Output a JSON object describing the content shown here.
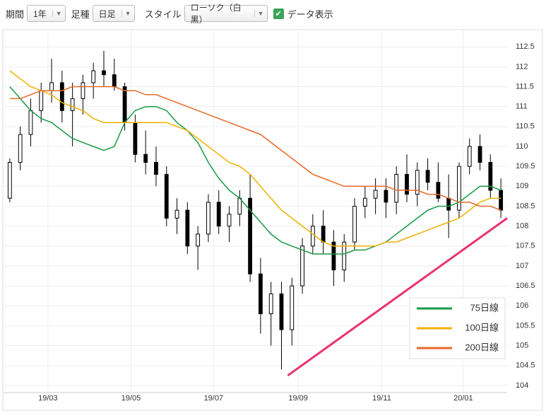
{
  "toolbar": {
    "period_label": "期間",
    "period": "1年",
    "bar_label": "足種",
    "bar": "日足",
    "style_label": "スタイル",
    "style": "ローソク（白黒）",
    "show_data": "データ表示"
  },
  "chart_data": {
    "type": "candlestick",
    "categories": [
      null,
      null,
      null,
      null,
      null,
      null,
      null,
      null,
      null,
      null,
      null,
      null,
      null,
      null,
      null,
      null,
      null,
      null,
      null,
      null,
      null,
      null,
      null,
      null,
      null,
      null,
      null,
      null,
      null,
      null,
      null,
      null,
      null,
      null,
      null,
      null,
      null,
      null,
      null,
      null,
      null,
      null,
      null,
      null,
      null,
      null,
      null,
      null
    ],
    "candles": {
      "open": [
        108.7,
        109.6,
        110.3,
        110.9,
        111.4,
        111.6,
        110.9,
        111.2,
        111.6,
        111.9,
        111.8,
        111.5,
        110.6,
        109.8,
        109.6,
        109.3,
        108.2,
        108.4,
        107.5,
        107.8,
        108.6,
        108.0,
        108.3,
        108.7,
        106.8,
        105.8,
        106.3,
        105.4,
        106.5,
        107.5,
        108.0,
        107.6,
        106.9,
        107.6,
        108.5,
        108.7,
        108.9,
        108.6,
        109.3,
        108.8,
        109.4,
        109.1,
        108.7,
        108.4,
        109.5,
        110.0,
        109.6,
        108.9
      ],
      "high": [
        109.7,
        110.5,
        111.2,
        111.6,
        112.2,
        111.9,
        111.6,
        111.8,
        112.1,
        112.4,
        112.2,
        111.6,
        110.8,
        110.4,
        110.0,
        109.5,
        108.7,
        108.6,
        108.0,
        108.8,
        108.9,
        108.5,
        108.9,
        109.3,
        107.2,
        106.6,
        106.6,
        106.7,
        107.7,
        108.3,
        108.4,
        107.9,
        107.8,
        108.7,
        109.0,
        109.2,
        109.2,
        109.5,
        109.8,
        109.6,
        109.7,
        109.6,
        109.3,
        109.6,
        110.2,
        110.3,
        109.8,
        109.2
      ],
      "low": [
        108.6,
        109.4,
        110.0,
        110.6,
        111.1,
        110.6,
        110.0,
        110.8,
        111.2,
        111.5,
        111.4,
        110.4,
        109.6,
        109.3,
        109.0,
        108.0,
        107.8,
        107.3,
        106.9,
        107.6,
        107.8,
        107.6,
        108.0,
        106.6,
        105.3,
        105.0,
        104.4,
        105.0,
        106.3,
        107.3,
        107.3,
        106.5,
        106.6,
        107.4,
        108.2,
        108.3,
        108.2,
        108.3,
        108.6,
        108.5,
        108.9,
        108.6,
        107.7,
        108.2,
        109.3,
        109.4,
        108.7,
        108.2
      ],
      "close": [
        109.6,
        110.3,
        110.9,
        111.4,
        111.6,
        110.9,
        111.2,
        111.6,
        111.9,
        111.8,
        111.5,
        110.6,
        109.8,
        109.6,
        109.3,
        108.2,
        108.4,
        107.5,
        107.8,
        108.6,
        108.0,
        108.3,
        108.7,
        106.8,
        105.8,
        106.3,
        105.4,
        106.5,
        107.5,
        108.0,
        107.6,
        106.9,
        107.6,
        108.5,
        108.7,
        108.9,
        108.6,
        109.3,
        108.8,
        109.4,
        109.1,
        108.7,
        108.4,
        109.5,
        110.0,
        109.6,
        108.9,
        108.4
      ]
    },
    "series": [
      {
        "name": "75日線",
        "color": "#1a9a48",
        "values": [
          111.5,
          111.2,
          110.9,
          110.7,
          110.6,
          110.4,
          110.2,
          110.1,
          110.0,
          109.9,
          110.0,
          110.6,
          110.9,
          111.0,
          111.0,
          110.9,
          110.6,
          110.4,
          110.1,
          109.6,
          109.2,
          108.9,
          108.7,
          108.4,
          108.1,
          107.8,
          107.6,
          107.5,
          107.4,
          107.3,
          107.3,
          107.3,
          107.3,
          107.4,
          107.4,
          107.5,
          107.6,
          107.8,
          108.0,
          108.2,
          108.4,
          108.5,
          108.5,
          108.6,
          108.8,
          109.0,
          109.0,
          108.9
        ]
      },
      {
        "name": "100日線",
        "color": "#f0b000",
        "values": [
          111.9,
          111.7,
          111.5,
          111.4,
          111.3,
          111.1,
          111.0,
          110.9,
          110.7,
          110.6,
          110.6,
          110.6,
          110.6,
          110.6,
          110.6,
          110.6,
          110.5,
          110.4,
          110.2,
          110.0,
          109.8,
          109.6,
          109.5,
          109.3,
          109.0,
          108.7,
          108.4,
          108.2,
          108.0,
          107.8,
          107.6,
          107.5,
          107.5,
          107.5,
          107.5,
          107.5,
          107.6,
          107.6,
          107.7,
          107.8,
          107.9,
          108.0,
          108.1,
          108.2,
          108.4,
          108.6,
          108.7,
          108.7
        ]
      },
      {
        "name": "200日線",
        "color": "#e8682a",
        "values": [
          111.2,
          111.2,
          111.3,
          111.4,
          111.4,
          111.4,
          111.5,
          111.5,
          111.5,
          111.5,
          111.5,
          111.4,
          111.4,
          111.3,
          111.3,
          111.2,
          111.1,
          111.0,
          110.9,
          110.8,
          110.7,
          110.6,
          110.5,
          110.4,
          110.3,
          110.1,
          109.9,
          109.7,
          109.5,
          109.3,
          109.2,
          109.1,
          109.0,
          109.0,
          109.0,
          109.0,
          109.0,
          108.9,
          108.9,
          108.9,
          108.8,
          108.8,
          108.7,
          108.6,
          108.6,
          108.5,
          108.5,
          108.4
        ]
      }
    ],
    "trendline": {
      "color": "#e8336d",
      "x": [
        26.6,
        47.6
      ],
      "values": [
        104.25,
        108.2
      ]
    },
    "xlim": [
      -0.6,
      47.6
    ],
    "xticks": [
      {
        "value": 3.65,
        "label": "19/03"
      },
      {
        "value": 11.6,
        "label": "19/05"
      },
      {
        "value": 19.5,
        "label": "19/07"
      },
      {
        "value": 27.6,
        "label": "19/09"
      },
      {
        "value": 35.6,
        "label": "19/11"
      },
      {
        "value": 43.4,
        "label": "20/01"
      }
    ],
    "ylim": [
      103.82,
      112.93
    ],
    "yticks": [
      104,
      104.5,
      105,
      105.5,
      106,
      106.5,
      107,
      107.5,
      108,
      108.5,
      109,
      109.5,
      110,
      110.5,
      111,
      111.5,
      112,
      112.5
    ],
    "grid": true,
    "legend": "lower right"
  }
}
